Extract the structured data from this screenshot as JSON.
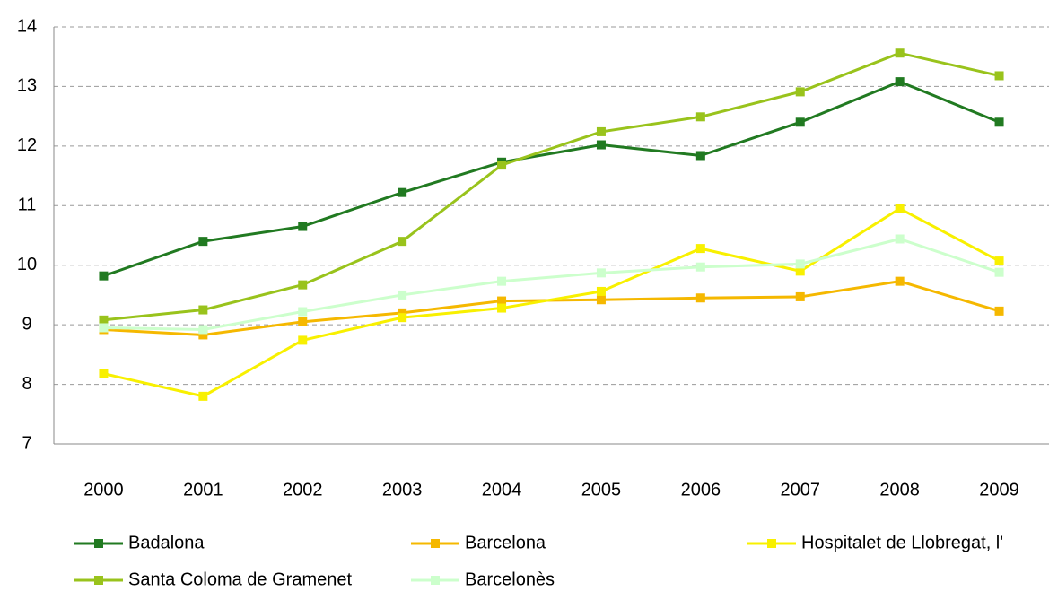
{
  "chart_data": {
    "type": "line",
    "categories": [
      "2000",
      "2001",
      "2002",
      "2003",
      "2004",
      "2005",
      "2006",
      "2007",
      "2008",
      "2009"
    ],
    "series": [
      {
        "name": "Badalona",
        "color": "#217a21",
        "values": [
          9.82,
          10.4,
          10.65,
          11.22,
          11.73,
          12.02,
          11.84,
          12.4,
          13.08,
          12.4
        ]
      },
      {
        "name": "Barcelona",
        "color": "#f5b800",
        "values": [
          8.92,
          8.83,
          9.05,
          9.2,
          9.4,
          9.42,
          9.45,
          9.47,
          9.73,
          9.23
        ]
      },
      {
        "name": "Hospitalet de Llobregat, l'",
        "color": "#f8f000",
        "values": [
          8.18,
          7.8,
          8.74,
          9.12,
          9.28,
          9.56,
          10.28,
          9.9,
          10.95,
          10.07
        ]
      },
      {
        "name": "Santa Coloma de Gramenet",
        "color": "#99c31c",
        "values": [
          9.08,
          9.25,
          9.67,
          10.4,
          11.68,
          12.24,
          12.49,
          12.91,
          13.56,
          13.18
        ]
      },
      {
        "name": "Barcelonès",
        "color": "#ccffcc",
        "values": [
          8.95,
          8.92,
          9.22,
          9.5,
          9.73,
          9.87,
          9.97,
          10.02,
          10.44,
          9.88
        ]
      }
    ],
    "ylim": [
      7,
      14
    ],
    "yticks": [
      7,
      8,
      9,
      10,
      11,
      12,
      13,
      14
    ],
    "grid": true,
    "legend": "bottom"
  }
}
